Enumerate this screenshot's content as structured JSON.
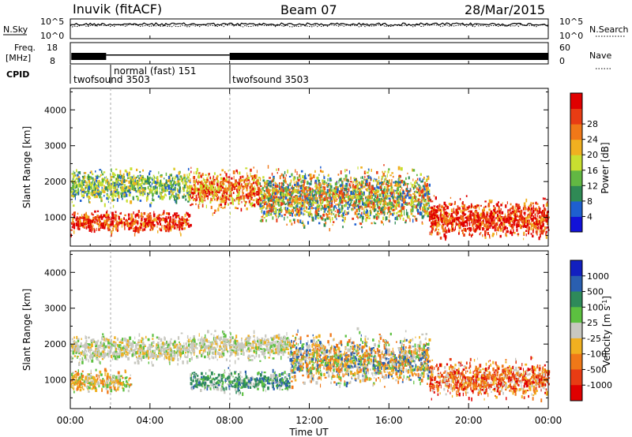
{
  "header": {
    "station": "Inuvik (fitACF)",
    "beam": "Beam 07",
    "date": "28/Mar/2015"
  },
  "strip_panels": {
    "nsky_label": "N.Sky",
    "nsearch_label": "N.Search",
    "nsky_ticks": [
      "10^5",
      "10^0"
    ],
    "nsearch_ticks": [
      "10^5",
      "10^0"
    ],
    "freq_label_top": "Freq.",
    "freq_label_bottom": "[MHz]",
    "freq_ticks": [
      "18",
      "8"
    ],
    "nave_label": "Nave",
    "nave_ticks": [
      "60",
      "0"
    ],
    "cpid_label": "CPID",
    "cpid_segments": [
      {
        "label": "twofsound 3503",
        "start_hour": 0,
        "end_hour": 1.8
      },
      {
        "label": "normal (fast) 151",
        "start_hour": 1.8,
        "end_hour": 8.0
      },
      {
        "label": "twofsound 3503",
        "start_hour": 8.0,
        "end_hour": 24
      }
    ]
  },
  "chart_data": [
    {
      "type": "heatmap",
      "parameter": "power",
      "ylabel": "Slant Range [km]",
      "ylim": [
        200,
        4600
      ],
      "yticks": [
        1000,
        2000,
        3000,
        4000
      ],
      "colorbar_label": "Power [dB]",
      "colorbar_ticks": [
        "4",
        "8",
        "12",
        "16",
        "20",
        "24",
        "28"
      ],
      "colorbar_colors": [
        "#1212d8",
        "#1e5fd0",
        "#2f8a55",
        "#62b843",
        "#c8df30",
        "#f0b020",
        "#f07818",
        "#e83c14",
        "#e00000"
      ],
      "scatter_bands": [
        {
          "start_hour": 0.0,
          "end_hour": 6.0,
          "range_low": 500,
          "range_high": 1300,
          "dominant": "red"
        },
        {
          "start_hour": 0.0,
          "end_hour": 6.0,
          "range_low": 1300,
          "range_high": 2500,
          "dominant": "green-yellow"
        },
        {
          "start_hour": 6.0,
          "end_hour": 9.5,
          "range_low": 1100,
          "range_high": 2500,
          "dominant": "red-orange"
        },
        {
          "start_hour": 9.5,
          "end_hour": 18.0,
          "range_low": 600,
          "range_high": 2600,
          "dominant": "orange-green"
        },
        {
          "start_hour": 18.0,
          "end_hour": 24.0,
          "range_low": 300,
          "range_high": 1700,
          "dominant": "red"
        }
      ]
    },
    {
      "type": "heatmap",
      "parameter": "velocity",
      "ylabel": "Slant Range [km]",
      "ylim": [
        200,
        4600
      ],
      "yticks": [
        1000,
        2000,
        3000,
        4000
      ],
      "xlabel": "Time UT",
      "xticks": [
        "00:00",
        "04:00",
        "08:00",
        "12:00",
        "16:00",
        "20:00",
        "00:00"
      ],
      "xlim_hours": [
        0,
        24
      ],
      "colorbar_label": "Velocity [m s^-1]",
      "colorbar_ticks": [
        "1000",
        "500",
        "100",
        "25",
        "-25",
        "-100",
        "-500",
        "-1000"
      ],
      "colorbar_colors": [
        "#1220c0",
        "#2a5fb0",
        "#2e8a5a",
        "#5cc040",
        "#c8c8c0",
        "#f0b020",
        "#f07818",
        "#e83c14",
        "#e00000"
      ],
      "scatter_bands": [
        {
          "start_hour": 0.0,
          "end_hour": 3.0,
          "range_low": 600,
          "range_high": 1400,
          "dominant": "orange"
        },
        {
          "start_hour": 0.0,
          "end_hour": 6.0,
          "range_low": 1400,
          "range_high": 2400,
          "dominant": "grey"
        },
        {
          "start_hour": 6.0,
          "end_hour": 11.0,
          "range_low": 600,
          "range_high": 1400,
          "dominant": "green"
        },
        {
          "start_hour": 6.0,
          "end_hour": 11.0,
          "range_low": 1500,
          "range_high": 2500,
          "dominant": "grey"
        },
        {
          "start_hour": 11.0,
          "end_hour": 18.0,
          "range_low": 700,
          "range_high": 2500,
          "dominant": "grey-orange"
        },
        {
          "start_hour": 18.0,
          "end_hour": 24.0,
          "range_low": 400,
          "range_high": 1700,
          "dominant": "orange-red"
        }
      ]
    }
  ]
}
